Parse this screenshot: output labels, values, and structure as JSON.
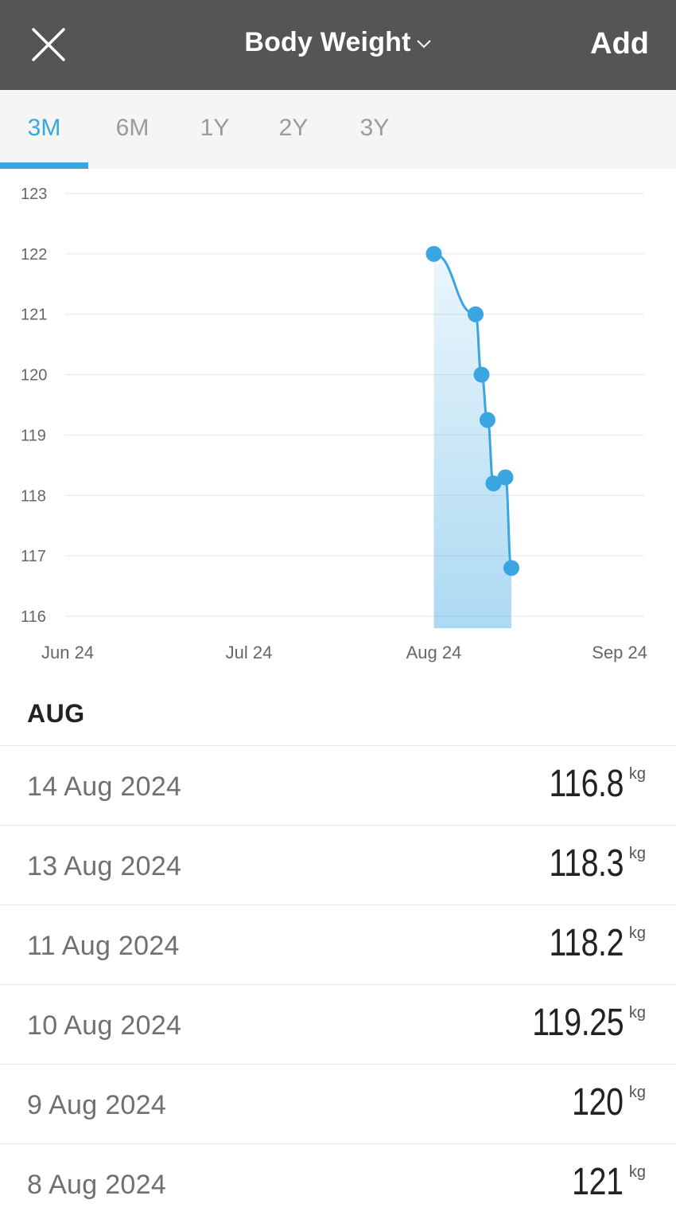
{
  "header": {
    "title": "Body Weight",
    "add_label": "Add"
  },
  "tabs": [
    {
      "label": "3M",
      "active": true
    },
    {
      "label": "6M",
      "active": false
    },
    {
      "label": "1Y",
      "active": false
    },
    {
      "label": "2Y",
      "active": false
    },
    {
      "label": "3Y",
      "active": false
    }
  ],
  "colors": {
    "accent": "#3aa5e0",
    "header_bg": "#555555",
    "tabs_bg": "#f5f5f6"
  },
  "chart_data": {
    "type": "area",
    "x": [
      "2024-08-01",
      "2024-08-08",
      "2024-08-09",
      "2024-08-10",
      "2024-08-11",
      "2024-08-13",
      "2024-08-14"
    ],
    "y": [
      122,
      121,
      120,
      119.25,
      118.2,
      118.3,
      116.8
    ],
    "ylim": [
      116,
      123
    ],
    "yticks": [
      "123",
      "122",
      "121",
      "120",
      "119",
      "118",
      "117",
      "116"
    ],
    "xtick_labels": [
      "Jun 24",
      "Jul 24",
      "Aug 24",
      "Sep 24"
    ],
    "xtick_dates": [
      "2024-06-01",
      "2024-07-01",
      "2024-08-01",
      "2024-09-01"
    ],
    "grid": true
  },
  "section": {
    "title": "AUG"
  },
  "entries": [
    {
      "date": "14 Aug 2024",
      "value": "116.8",
      "unit": "kg"
    },
    {
      "date": "13 Aug 2024",
      "value": "118.3",
      "unit": "kg"
    },
    {
      "date": "11 Aug 2024",
      "value": "118.2",
      "unit": "kg"
    },
    {
      "date": "10 Aug 2024",
      "value": "119.25",
      "unit": "kg"
    },
    {
      "date": "9 Aug 2024",
      "value": "120",
      "unit": "kg"
    },
    {
      "date": "8 Aug 2024",
      "value": "121",
      "unit": "kg"
    }
  ]
}
